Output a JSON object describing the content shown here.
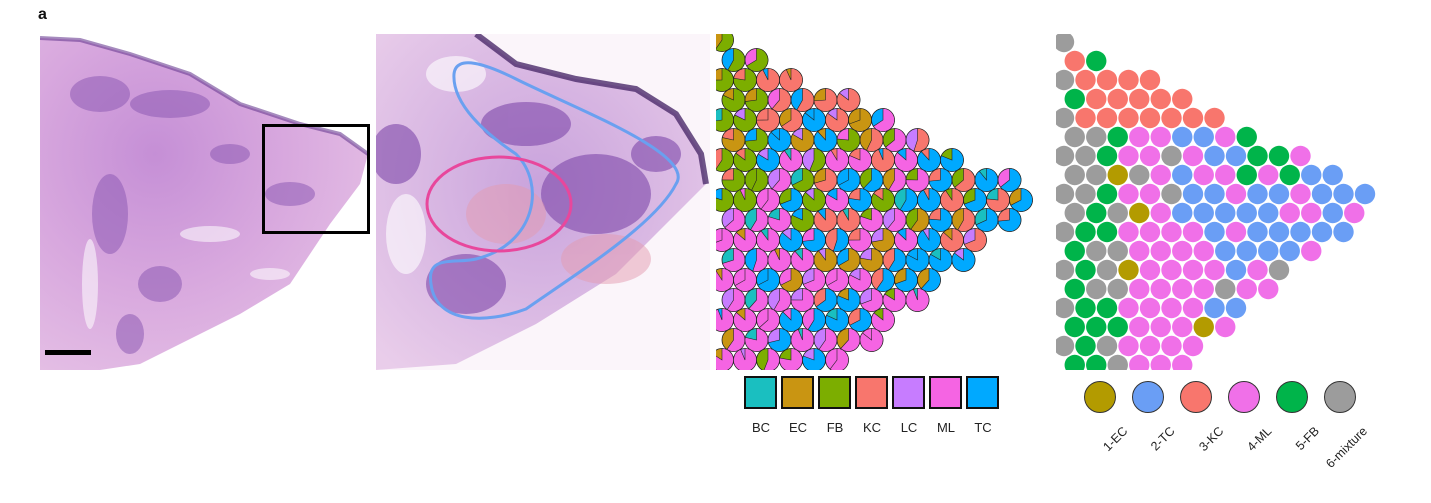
{
  "panel_label": "a",
  "celltype_legend": {
    "items": [
      {
        "label": "BC",
        "color": "#1ABFC0"
      },
      {
        "label": "EC",
        "color": "#C99512"
      },
      {
        "label": "FB",
        "color": "#7CAE00"
      },
      {
        "label": "KC",
        "color": "#F8766D"
      },
      {
        "label": "LC",
        "color": "#C77CFF"
      },
      {
        "label": "ML",
        "color": "#F564E3"
      },
      {
        "label": "TC",
        "color": "#00A9FF"
      }
    ]
  },
  "cluster_legend": {
    "items": [
      {
        "label": "1-EC",
        "color": "#B39B00"
      },
      {
        "label": "2-TC",
        "color": "#6A9EF5"
      },
      {
        "label": "3-KC",
        "color": "#F8766D"
      },
      {
        "label": "4-ML",
        "color": "#F070E8"
      },
      {
        "label": "5-FB",
        "color": "#00B44A"
      },
      {
        "label": "6-mixture",
        "color": "#9C9C9C"
      }
    ]
  },
  "annotation_colors": {
    "zoom_box": "#000000",
    "outer_region": "#6AA0F0",
    "inner_region": "#E8479C"
  }
}
